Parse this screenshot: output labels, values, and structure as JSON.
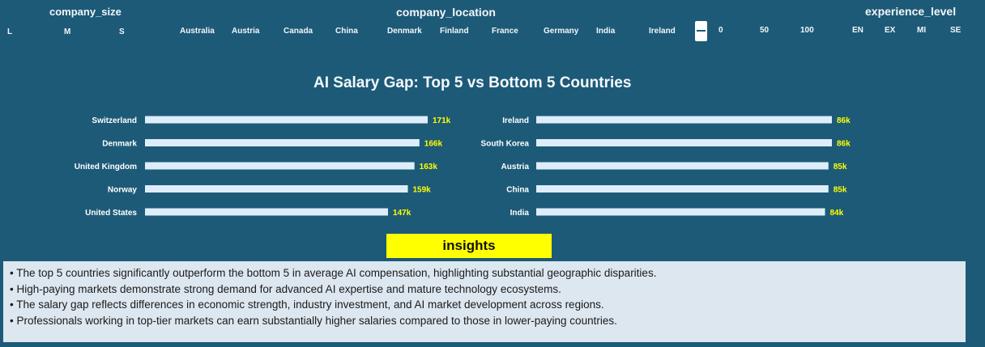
{
  "slicers": {
    "company_size": {
      "title": "company_size",
      "items": [
        "L",
        "M",
        "S"
      ]
    },
    "company_location": {
      "title": "company_location",
      "items": [
        "Australia",
        "Austria",
        "Canada",
        "China",
        "Denmark",
        "Finland",
        "France",
        "Germany",
        "India",
        "Ireland"
      ]
    },
    "remote_ratio": {
      "items": [
        "0",
        "50",
        "100"
      ]
    },
    "experience_level": {
      "title": "experience_level",
      "items": [
        "EN",
        "EX",
        "MI",
        "SE"
      ]
    }
  },
  "chart_title": "AI Salary Gap: Top 5 vs Bottom 5 Countries",
  "chart_data": [
    {
      "type": "bar",
      "orientation": "horizontal",
      "categories": [
        "Switzerland",
        "Denmark",
        "United Kingdom",
        "Norway",
        "United States"
      ],
      "values": [
        171,
        166,
        163,
        159,
        147
      ],
      "labels": [
        "171k",
        "166k",
        "163k",
        "159k",
        "147k"
      ],
      "bar_color": "#ddeefa",
      "label_color": "#ffff00"
    },
    {
      "type": "bar",
      "orientation": "horizontal",
      "categories": [
        "Ireland",
        "South Korea",
        "Austria",
        "China",
        "India"
      ],
      "values": [
        86,
        86,
        85,
        85,
        84
      ],
      "labels": [
        "86k",
        "86k",
        "85k",
        "85k",
        "84k"
      ],
      "bar_color": "#ddeefa",
      "label_color": "#ffff00"
    }
  ],
  "insights": {
    "title": "insights",
    "lines": [
      "• The top 5 countries significantly outperform the bottom 5 in average AI compensation, highlighting substantial geographic disparities.",
      "• High-paying markets demonstrate strong demand for advanced AI expertise and mature technology ecosystems.",
      "• The salary gap reflects differences in economic strength, industry investment, and AI market development across regions.",
      "•  Professionals working in top-tier markets can earn substantially higher salaries compared to those in lower-paying countries."
    ]
  },
  "colors": {
    "background": "#1d5a78",
    "bar": "#ddeefa",
    "value_label": "#ffff00",
    "insights_header": "#ffff00",
    "insights_box": "#dde7ef"
  }
}
